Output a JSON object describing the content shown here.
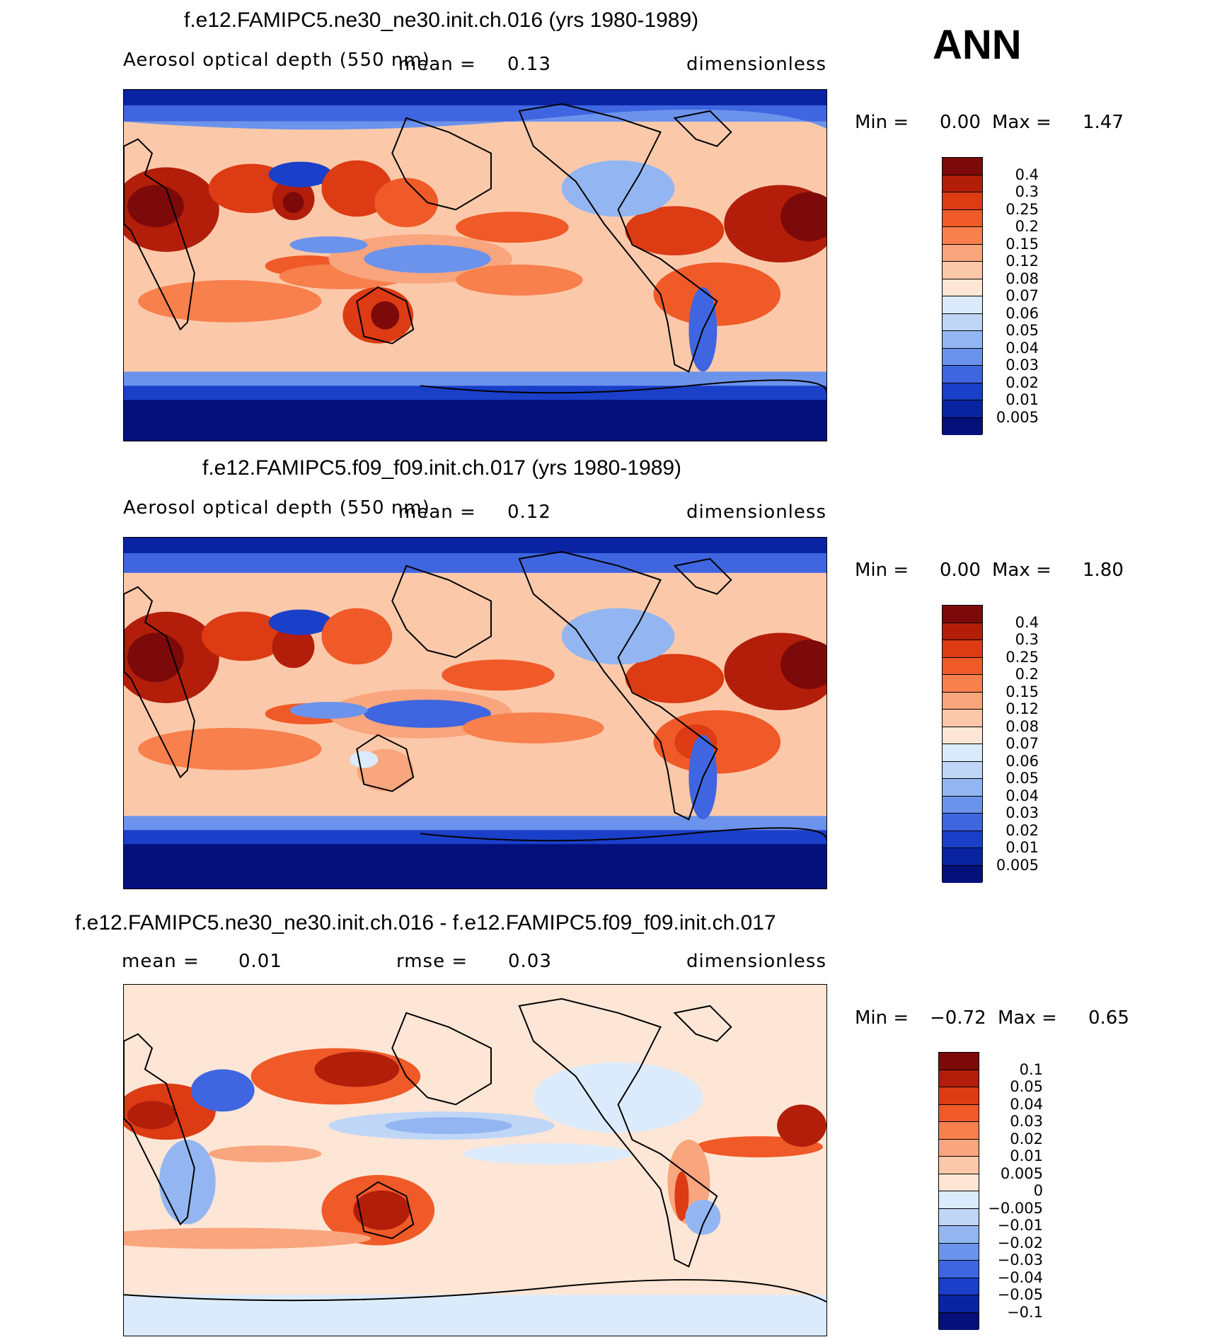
{
  "season": "ANN",
  "panels": [
    {
      "title": "f.e12.FAMIPC5.ne30_ne30.init.ch.016 (yrs 1980-1989)",
      "variable": "Aerosol optical depth (550 nm)",
      "mean_label": "mean =",
      "mean_value": "0.13",
      "units": "dimensionless",
      "min_label": "Min =",
      "min_value": "0.00",
      "max_label": "Max =",
      "max_value": "1.47"
    },
    {
      "title": "f.e12.FAMIPC5.f09_f09.init.ch.017 (yrs 1980-1989)",
      "variable": "Aerosol optical depth (550 nm)",
      "mean_label": "mean =",
      "mean_value": "0.12",
      "units": "dimensionless",
      "min_label": "Min =",
      "min_value": "0.00",
      "max_label": "Max =",
      "max_value": "1.80"
    },
    {
      "title": "f.e12.FAMIPC5.ne30_ne30.init.ch.016 - f.e12.FAMIPC5.f09_f09.init.ch.017",
      "mean_label": "mean =",
      "mean_value": "0.01",
      "rmse_label": "rmse =",
      "rmse_value": "0.03",
      "units": "dimensionless",
      "min_label": "Min =",
      "min_value": "−0.72",
      "max_label": "Max =",
      "max_value": "0.65"
    }
  ],
  "colorbar_abs": {
    "levels": [
      "0.4",
      "0.3",
      "0.25",
      "0.2",
      "0.15",
      "0.12",
      "0.08",
      "0.07",
      "0.06",
      "0.05",
      "0.04",
      "0.03",
      "0.02",
      "0.01",
      "0.005"
    ],
    "colors": [
      "#7d0a0a",
      "#b21e0a",
      "#dc3b14",
      "#f05a28",
      "#f7804d",
      "#f9a57d",
      "#fbc9aa",
      "#fde6d6",
      "#dcebfb",
      "#bfd6f7",
      "#93b6f2",
      "#6c93ec",
      "#3f66e0",
      "#1a3fc9",
      "#0a23a3",
      "#05107a"
    ]
  },
  "colorbar_diff": {
    "levels": [
      "0.1",
      "0.05",
      "0.04",
      "0.03",
      "0.02",
      "0.01",
      "0.005",
      "0",
      "−0.005",
      "−0.01",
      "−0.02",
      "−0.03",
      "−0.04",
      "−0.05",
      "−0.1"
    ],
    "colors": [
      "#7d0a0a",
      "#b21e0a",
      "#dc3b14",
      "#f05a28",
      "#f7804d",
      "#f9a57d",
      "#fbc9aa",
      "#fde6d6",
      "#dcebfb",
      "#bfd6f7",
      "#93b6f2",
      "#6c93ec",
      "#3f66e0",
      "#1a3fc9",
      "#0a23a3",
      "#05107a"
    ]
  }
}
